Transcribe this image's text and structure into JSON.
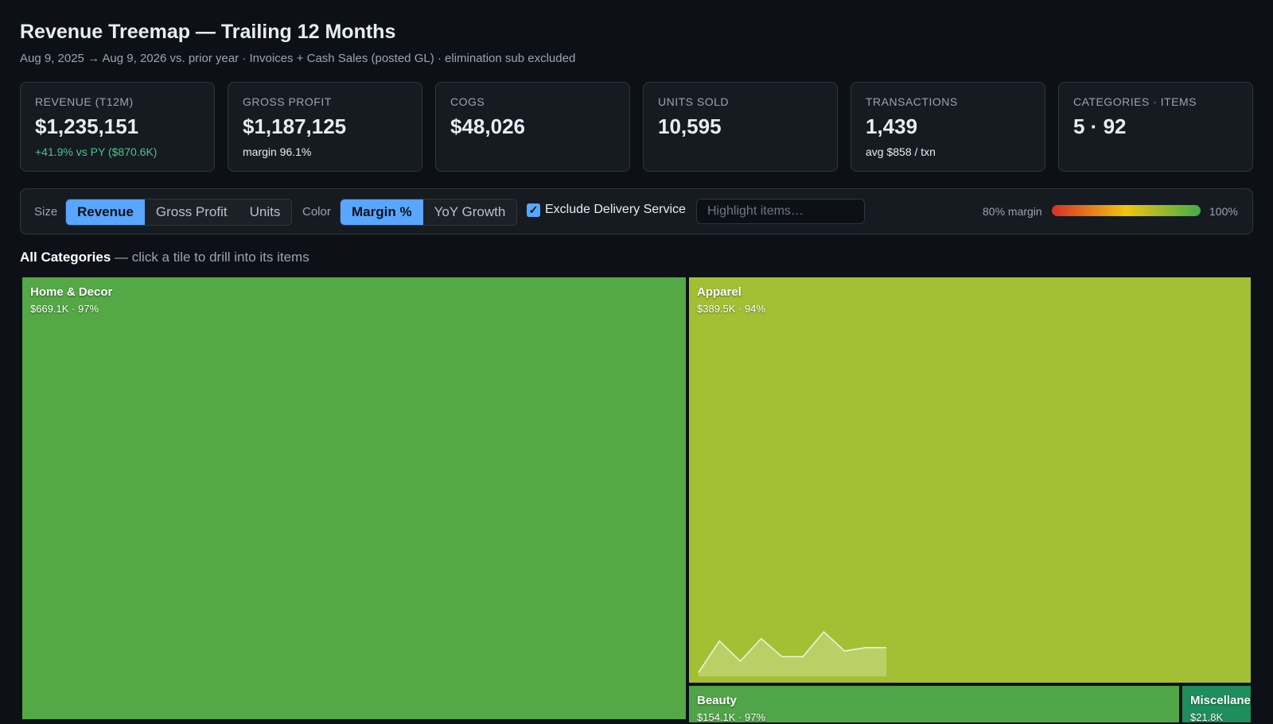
{
  "header": {
    "title": "Revenue Treemap — Trailing 12 Months",
    "subtitle": "Aug 9, 2025 → Aug 9, 2026 vs. prior year · Invoices + Cash Sales (posted GL) · elimination sub excluded"
  },
  "kpis": [
    {
      "label": "REVENUE (T12M)",
      "value": "$1,235,151",
      "sub": "+41.9% vs PY ($870.6K)",
      "sub_color": "#4cc38a"
    },
    {
      "label": "GROSS PROFIT",
      "value": "$1,187,125",
      "sub": "margin 96.1%"
    },
    {
      "label": "COGS",
      "value": "$48,026"
    },
    {
      "label": "UNITS SOLD",
      "value": "10,595"
    },
    {
      "label": "TRANSACTIONS",
      "value": "1,439",
      "sub": "avg $858 / txn"
    },
    {
      "label": "CATEGORIES · ITEMS",
      "value": "5 · 92"
    }
  ],
  "controls": {
    "size": {
      "label": "Size",
      "options": [
        "Revenue",
        "Gross Profit",
        "Units"
      ],
      "active": 0
    },
    "color": {
      "label": "Color",
      "options": [
        "Margin %",
        "YoY Growth"
      ],
      "active": 0
    },
    "checkbox": {
      "label": "Exclude Delivery Service",
      "checked": true
    },
    "search": {
      "placeholder": "Highlight items…"
    },
    "legend": {
      "min_label": "80% margin",
      "max_label": "100%"
    }
  },
  "breadcrumb": {
    "title": "All Categories",
    "hint": "— click a tile to drill into its items"
  },
  "tiles": [
    {
      "name": "Home & Decor",
      "detail": "$669.1K · 97%",
      "color": "#54a846"
    },
    {
      "name": "Apparel",
      "detail": "$389.5K · 94%",
      "color": "#a3c035",
      "spark": [
        2,
        30,
        12,
        32,
        16,
        16,
        38,
        21,
        24,
        24
      ]
    },
    {
      "name": "Beauty",
      "detail": "$154.1K · 97%",
      "color": "#4fa547"
    },
    {
      "name": "Miscellaneous",
      "detail": "$21.8K",
      "color": "#1e8e5c"
    }
  ]
}
